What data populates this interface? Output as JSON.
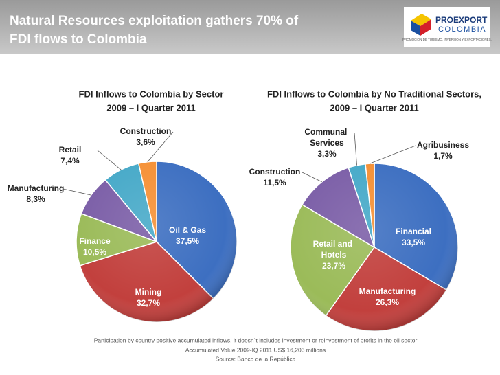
{
  "header": {
    "title_lines": [
      "Natural  Resources  exploitation  gathers  70%  of",
      "FDI flows to Colombia"
    ],
    "logo": {
      "name": "PROEXPORT",
      "country": "COLOMBIA",
      "tagline": "PROMOCIÓN DE TURISMO, INVERSIÓN Y EXPORTACIONES."
    }
  },
  "chart_data": [
    {
      "type": "pie",
      "title": "FDI Inflows to Colombia by Sector",
      "subtitle": "2009 – I Quarter 2011",
      "categories": [
        "Oil & Gas",
        "Mining",
        "Finance",
        "Manufacturing",
        "Retail",
        "Construction"
      ],
      "values": [
        37.5,
        32.7,
        10.5,
        8.3,
        7.4,
        3.6
      ],
      "value_labels": [
        "37,5%",
        "32,7%",
        "10,5%",
        "8,3%",
        "7,4%",
        "3,6%"
      ],
      "colors": [
        "#3d6fc1",
        "#c2403d",
        "#9bbb59",
        "#7b5ea7",
        "#46a9c8",
        "#f59035"
      ]
    },
    {
      "type": "pie",
      "title": "FDI Inflows to Colombia by No Traditional Sectors,",
      "subtitle": "2009 – I Quarter 2011",
      "categories": [
        "Financial",
        "Manufacturing",
        "Retail and Hotels",
        "Construction",
        "Communal Services",
        "Agribusiness"
      ],
      "values": [
        33.5,
        26.3,
        23.7,
        11.5,
        3.3,
        1.7
      ],
      "value_labels": [
        "33,5%",
        "26,3%",
        "23,7%",
        "11,5%",
        "3,3%",
        "1,7%"
      ],
      "colors": [
        "#3d6fc1",
        "#c2403d",
        "#9bbb59",
        "#7b5ea7",
        "#46a9c8",
        "#f59035"
      ]
    }
  ],
  "footer": [
    "Participation by country positive accumulated inflows, it doesn´t includes investment or reinvestment of profits in the oil sector",
    "Accumulated Value 2009-IQ 2011 US$ 16,203 millions",
    "Source: Banco de la República"
  ]
}
